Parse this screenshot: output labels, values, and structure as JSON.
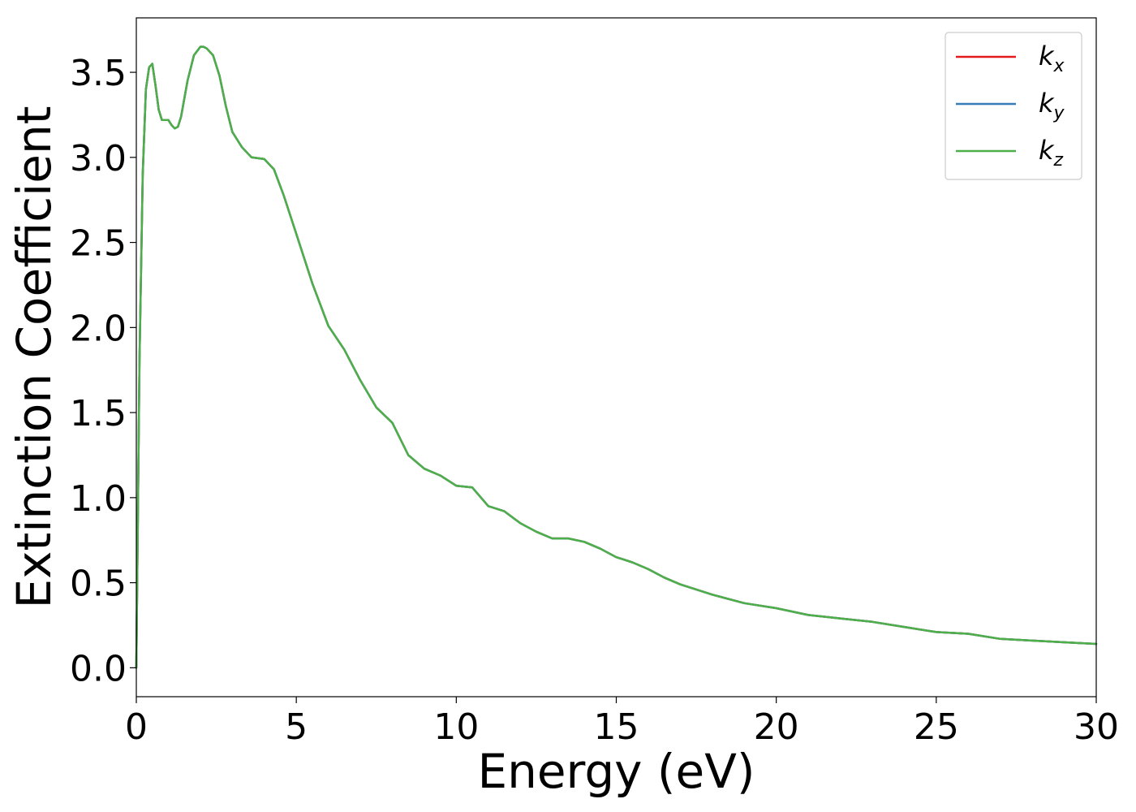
{
  "chart_data": {
    "type": "line",
    "title": "",
    "xlabel": "Energy (eV)",
    "ylabel": "Extinction Coefficient",
    "xlim": [
      0,
      30
    ],
    "ylim": [
      -0.17,
      3.82
    ],
    "xticks": [
      0,
      5,
      10,
      15,
      20,
      25,
      30
    ],
    "xtick_labels": [
      "0",
      "5",
      "10",
      "15",
      "20",
      "25",
      "30"
    ],
    "yticks": [
      0.0,
      0.5,
      1.0,
      1.5,
      2.0,
      2.5,
      3.0,
      3.5
    ],
    "ytick_labels": [
      "0.0",
      "0.5",
      "1.0",
      "1.5",
      "2.0",
      "2.5",
      "3.0",
      "3.5"
    ],
    "grid": false,
    "legend": "top-right",
    "x": [
      0,
      0.1,
      0.2,
      0.3,
      0.4,
      0.5,
      0.6,
      0.7,
      0.8,
      0.9,
      1.0,
      1.1,
      1.2,
      1.3,
      1.4,
      1.6,
      1.8,
      2.0,
      2.1,
      2.2,
      2.4,
      2.6,
      2.8,
      3.0,
      3.3,
      3.6,
      4.0,
      4.3,
      4.6,
      5.0,
      5.5,
      6.0,
      6.5,
      7.0,
      7.5,
      8.0,
      8.5,
      9.0,
      9.5,
      10.0,
      10.5,
      11.0,
      11.5,
      12.0,
      12.5,
      13.0,
      13.5,
      14.0,
      14.5,
      15.0,
      15.5,
      16.0,
      16.5,
      17.0,
      18.0,
      19.0,
      20.0,
      21.0,
      22.0,
      23.0,
      24.0,
      25.0,
      26.0,
      27.0,
      28.0,
      29.0,
      30.0
    ],
    "series": [
      {
        "name": "k_x",
        "label_main": "k",
        "label_sub": "x",
        "color": "#e41a1c",
        "values": [
          0.0,
          1.8,
          2.9,
          3.4,
          3.53,
          3.55,
          3.42,
          3.28,
          3.22,
          3.22,
          3.22,
          3.19,
          3.17,
          3.18,
          3.24,
          3.45,
          3.6,
          3.65,
          3.65,
          3.64,
          3.6,
          3.48,
          3.3,
          3.15,
          3.06,
          3.0,
          2.99,
          2.93,
          2.78,
          2.55,
          2.26,
          2.01,
          1.87,
          1.69,
          1.53,
          1.44,
          1.25,
          1.17,
          1.13,
          1.07,
          1.06,
          0.95,
          0.92,
          0.85,
          0.8,
          0.76,
          0.76,
          0.74,
          0.7,
          0.65,
          0.62,
          0.58,
          0.53,
          0.49,
          0.43,
          0.38,
          0.35,
          0.31,
          0.29,
          0.27,
          0.24,
          0.21,
          0.2,
          0.17,
          0.16,
          0.15,
          0.14
        ]
      },
      {
        "name": "k_y",
        "label_main": "k",
        "label_sub": "y",
        "color": "#377eb8",
        "values": [
          0.0,
          1.8,
          2.9,
          3.4,
          3.53,
          3.55,
          3.42,
          3.28,
          3.22,
          3.22,
          3.22,
          3.19,
          3.17,
          3.18,
          3.24,
          3.45,
          3.6,
          3.65,
          3.65,
          3.64,
          3.6,
          3.48,
          3.3,
          3.15,
          3.06,
          3.0,
          2.99,
          2.93,
          2.78,
          2.55,
          2.26,
          2.01,
          1.87,
          1.69,
          1.53,
          1.44,
          1.25,
          1.17,
          1.13,
          1.07,
          1.06,
          0.95,
          0.92,
          0.85,
          0.8,
          0.76,
          0.76,
          0.74,
          0.7,
          0.65,
          0.62,
          0.58,
          0.53,
          0.49,
          0.43,
          0.38,
          0.35,
          0.31,
          0.29,
          0.27,
          0.24,
          0.21,
          0.2,
          0.17,
          0.16,
          0.15,
          0.14
        ]
      },
      {
        "name": "k_z",
        "label_main": "k",
        "label_sub": "z",
        "color": "#4daf4a",
        "values": [
          0.0,
          1.8,
          2.9,
          3.4,
          3.53,
          3.55,
          3.42,
          3.28,
          3.22,
          3.22,
          3.22,
          3.19,
          3.17,
          3.18,
          3.24,
          3.45,
          3.6,
          3.65,
          3.65,
          3.64,
          3.6,
          3.48,
          3.3,
          3.15,
          3.06,
          3.0,
          2.99,
          2.93,
          2.78,
          2.55,
          2.26,
          2.01,
          1.87,
          1.69,
          1.53,
          1.44,
          1.25,
          1.17,
          1.13,
          1.07,
          1.06,
          0.95,
          0.92,
          0.85,
          0.8,
          0.76,
          0.76,
          0.74,
          0.7,
          0.65,
          0.62,
          0.58,
          0.53,
          0.49,
          0.43,
          0.38,
          0.35,
          0.31,
          0.29,
          0.27,
          0.24,
          0.21,
          0.2,
          0.17,
          0.16,
          0.15,
          0.14
        ]
      }
    ]
  }
}
